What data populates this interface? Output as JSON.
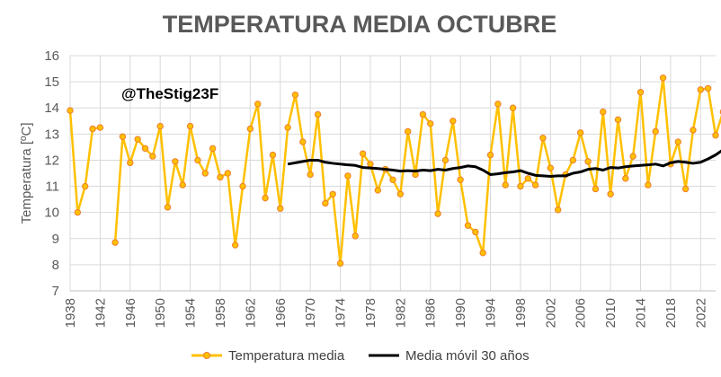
{
  "chart_data": {
    "type": "line",
    "title": "TEMPERATURA MEDIA OCTUBRE",
    "ylabel": "Temperatura [ºC]",
    "xlabel": "",
    "annotation": "@TheStig23F",
    "ylim": [
      7,
      16
    ],
    "xlim": [
      1938,
      2024
    ],
    "y_ticks": [
      "7",
      "8",
      "9",
      "10",
      "11",
      "12",
      "13",
      "14",
      "15",
      "16"
    ],
    "x_ticks": [
      "1938",
      "1942",
      "1946",
      "1950",
      "1954",
      "1958",
      "1962",
      "1966",
      "1970",
      "1974",
      "1978",
      "1982",
      "1986",
      "1990",
      "1994",
      "1998",
      "2002",
      "2006",
      "2010",
      "2014",
      "2018",
      "2022"
    ],
    "grid": "vertical and horizontal",
    "legend_position": "bottom",
    "colors": {
      "series_line": "#FFC000",
      "series_marker_edge": "#ED7D31",
      "moving_avg": "#000000",
      "grid": "#D9D9D9",
      "text": "#595959"
    },
    "series": [
      {
        "name": "Temperatura media",
        "style": "line-markers",
        "x": [
          1938,
          1939,
          1940,
          1941,
          1942,
          1944,
          1945,
          1946,
          1947,
          1948,
          1949,
          1950,
          1951,
          1952,
          1953,
          1954,
          1955,
          1956,
          1957,
          1958,
          1959,
          1960,
          1961,
          1962,
          1963,
          1964,
          1965,
          1966,
          1967,
          1968,
          1969,
          1970,
          1971,
          1972,
          1973,
          1974,
          1975,
          1976,
          1977,
          1978,
          1979,
          1980,
          1981,
          1982,
          1983,
          1984,
          1985,
          1986,
          1987,
          1988,
          1989,
          1990,
          1991,
          1992,
          1993,
          1994,
          1995,
          1996,
          1997,
          1998,
          1999,
          2000,
          2001,
          2002,
          2003,
          2004,
          2005,
          2006,
          2007,
          2008,
          2009,
          2010,
          2011,
          2012,
          2013,
          2014,
          2015,
          2016,
          2017,
          2018,
          2019,
          2020,
          2021,
          2022,
          2023,
          2024,
          2025
        ],
        "values": [
          13.9,
          10.0,
          11.0,
          13.2,
          13.25,
          8.85,
          12.9,
          11.9,
          12.8,
          12.45,
          12.15,
          13.3,
          10.2,
          11.95,
          11.05,
          13.3,
          12.0,
          11.5,
          12.45,
          11.35,
          11.5,
          8.75,
          11.0,
          13.2,
          14.15,
          10.55,
          12.2,
          10.15,
          13.25,
          14.5,
          12.7,
          11.45,
          13.75,
          10.35,
          10.7,
          8.05,
          11.4,
          9.1,
          12.25,
          11.85,
          10.85,
          11.65,
          11.25,
          10.7,
          13.1,
          11.45,
          13.75,
          13.4,
          9.95,
          12.0,
          13.5,
          11.25,
          9.5,
          9.25,
          8.45,
          12.2,
          14.15,
          11.05,
          14.0,
          11.0,
          11.3,
          11.05,
          12.85,
          11.7,
          10.1,
          11.45,
          12.0,
          13.05,
          11.95,
          10.9,
          13.85,
          10.7,
          13.55,
          11.3,
          12.15,
          14.6,
          11.05,
          13.1,
          15.15,
          11.85,
          12.7,
          10.9,
          13.15,
          14.7,
          14.75,
          12.95,
          13.85
        ]
      },
      {
        "name": "Media móvil 30 años",
        "style": "line",
        "x": [
          1967,
          1968,
          1969,
          1970,
          1971,
          1972,
          1973,
          1974,
          1975,
          1976,
          1977,
          1978,
          1979,
          1980,
          1981,
          1982,
          1983,
          1984,
          1985,
          1986,
          1987,
          1988,
          1989,
          1990,
          1991,
          1992,
          1993,
          1994,
          1995,
          1996,
          1997,
          1998,
          1999,
          2000,
          2001,
          2002,
          2003,
          2004,
          2005,
          2006,
          2007,
          2008,
          2009,
          2010,
          2011,
          2012,
          2013,
          2014,
          2015,
          2016,
          2017,
          2018,
          2019,
          2020,
          2021,
          2022,
          2023,
          2024,
          2025
        ],
        "values": [
          11.85,
          11.9,
          11.95,
          12.0,
          12.0,
          11.92,
          11.88,
          11.85,
          11.82,
          11.8,
          11.72,
          11.7,
          11.68,
          11.65,
          11.62,
          11.58,
          11.6,
          11.58,
          11.62,
          11.6,
          11.65,
          11.62,
          11.68,
          11.72,
          11.78,
          11.75,
          11.62,
          11.45,
          11.48,
          11.52,
          11.55,
          11.6,
          11.5,
          11.42,
          11.4,
          11.38,
          11.4,
          11.4,
          11.5,
          11.55,
          11.65,
          11.68,
          11.62,
          11.72,
          11.7,
          11.75,
          11.78,
          11.8,
          11.82,
          11.85,
          11.78,
          11.9,
          11.95,
          11.92,
          11.88,
          11.92,
          12.05,
          12.2,
          12.4
        ]
      }
    ]
  }
}
